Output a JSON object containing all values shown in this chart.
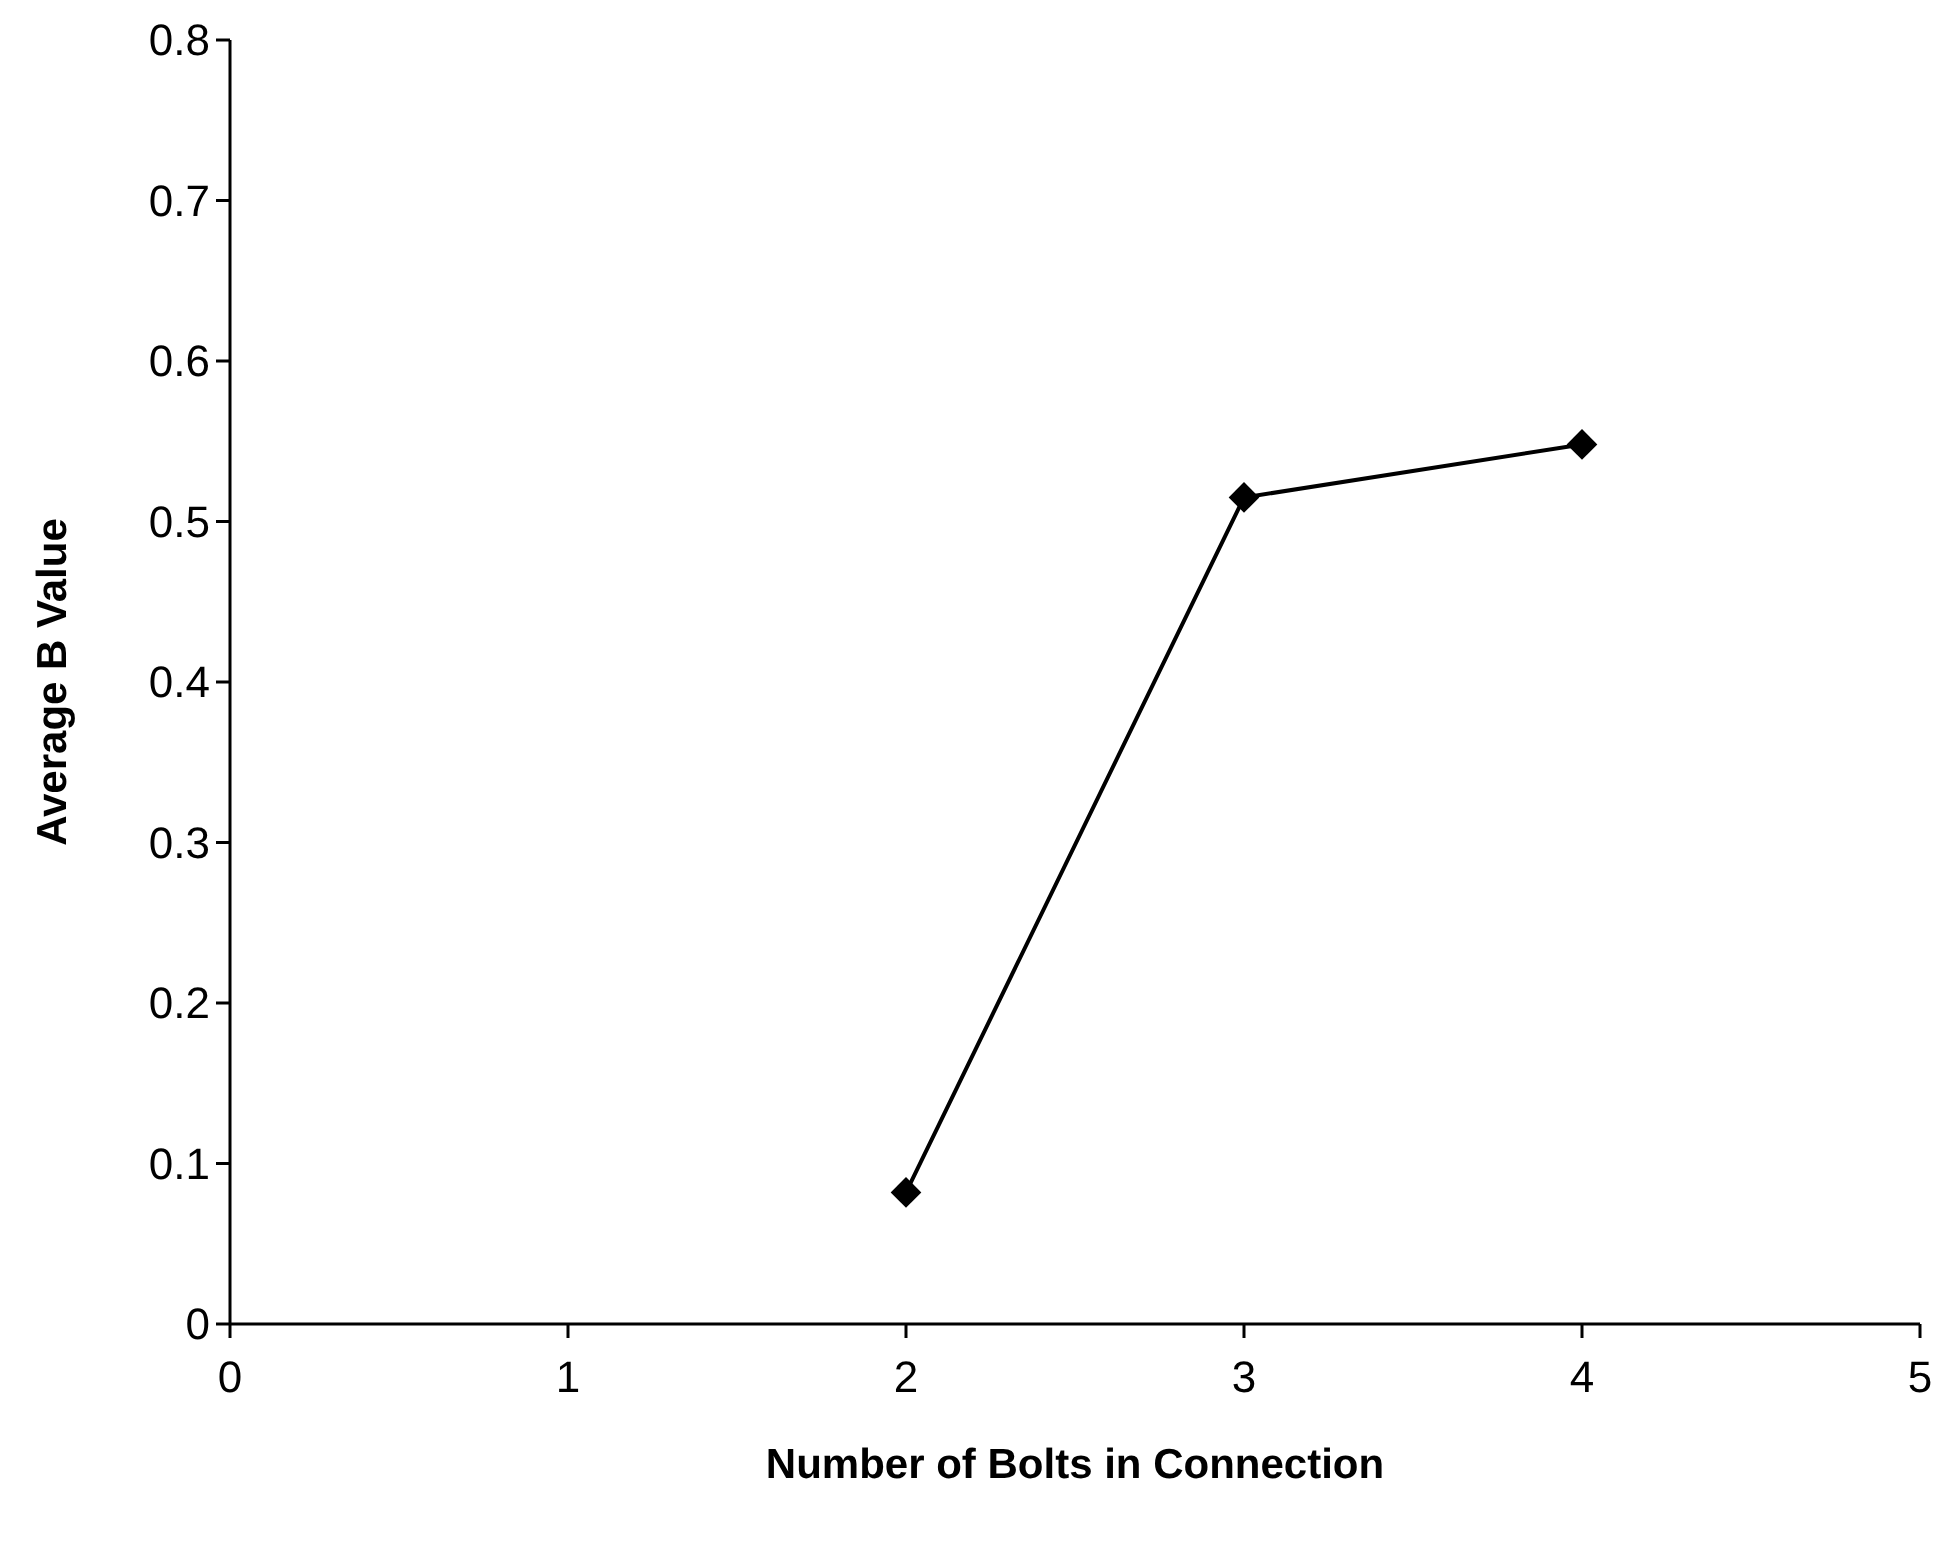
{
  "chart_data": {
    "type": "line",
    "xlabel": "Number of Bolts in Connection",
    "ylabel": "Average B Value",
    "x": [
      2,
      3,
      4
    ],
    "series": [
      {
        "color": "#000000",
        "values": [
          0.082,
          0.515,
          0.548
        ]
      }
    ],
    "xlim": [
      0,
      5
    ],
    "xticks": [
      0,
      1,
      2,
      3,
      4,
      5
    ],
    "ylim": [
      0,
      0.8
    ],
    "yticks": [
      0,
      0.1,
      0.2,
      0.3,
      0.4,
      0.5,
      0.6,
      0.7,
      0.8
    ],
    "grid": false,
    "marker": "diamond",
    "line_style": "solid"
  }
}
